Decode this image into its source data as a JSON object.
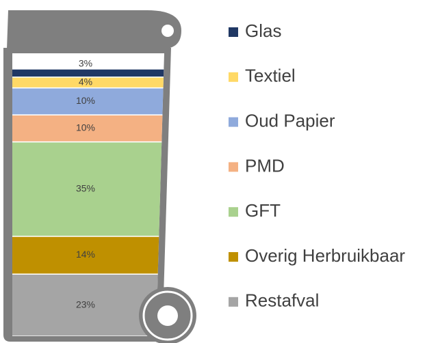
{
  "chart_data": {
    "type": "stacked-bar",
    "series": [
      {
        "name": "Glas",
        "color": "#203864",
        "values": [
          3
        ],
        "value_labels": [
          "3%"
        ]
      },
      {
        "name": "Textiel",
        "color": "#ffd966",
        "values": [
          4
        ],
        "value_labels": [
          "4%"
        ]
      },
      {
        "name": "Oud Papier",
        "color": "#8faadc",
        "values": [
          10
        ],
        "value_labels": [
          "10%"
        ]
      },
      {
        "name": "PMD",
        "color": "#f4b183",
        "values": [
          10
        ],
        "value_labels": [
          "10%"
        ]
      },
      {
        "name": "GFT",
        "color": "#a9d18e",
        "values": [
          35
        ],
        "value_labels": [
          "35%"
        ]
      },
      {
        "name": "Overig Herbruikbaar",
        "color": "#bf9000",
        "values": [
          14
        ],
        "value_labels": [
          "14%"
        ]
      },
      {
        "name": "Restafval",
        "color": "#a5a5a5",
        "values": [
          23
        ],
        "value_labels": [
          "23%"
        ]
      }
    ]
  }
}
